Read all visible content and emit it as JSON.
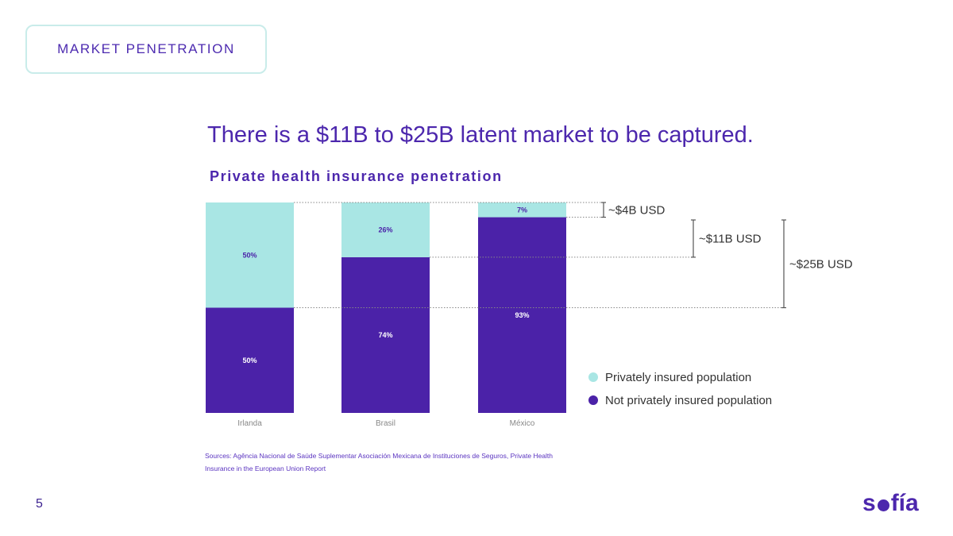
{
  "section_tag": "MARKET PENETRATION",
  "headline": "There is a $11B to $25B latent market to be captured.",
  "page_number": "5",
  "logo": {
    "before": "s",
    "after": "fía"
  },
  "sources": "Sources: Agência Nacional de Saúde Suplementar Asociación Mexicana de Instituciones de Seguros, Private Health Insurance in the European Union Report",
  "colors": {
    "insured": "#a9e6e4",
    "not_insured": "#4b22a8",
    "text": "#4c27ad"
  },
  "chart_data": {
    "type": "bar",
    "stacked": true,
    "subtitle": "Private health insurance penetration",
    "categories": [
      "Irlanda",
      "Brasil",
      "México"
    ],
    "series": [
      {
        "name": "Privately insured population",
        "values": [
          50,
          26,
          7
        ],
        "labels": [
          "50%",
          "26%",
          "7%"
        ],
        "color": "#a9e6e4"
      },
      {
        "name": "Not privately insured population",
        "values": [
          50,
          74,
          93
        ],
        "labels": [
          "50%",
          "74%",
          "93%"
        ],
        "color": "#4b22a8"
      }
    ],
    "ylim": [
      0,
      100
    ],
    "annotations": [
      {
        "text": "~$4B USD",
        "from_category": "México",
        "from_level": 93,
        "to_level": 100
      },
      {
        "text": "~$11B USD",
        "from_category": "Brasil",
        "from_level": 74,
        "to_level": 100
      },
      {
        "text": "~$25B USD",
        "from_category": "Irlanda",
        "from_level": 50,
        "to_level": 100
      }
    ],
    "legend_position": "right"
  }
}
